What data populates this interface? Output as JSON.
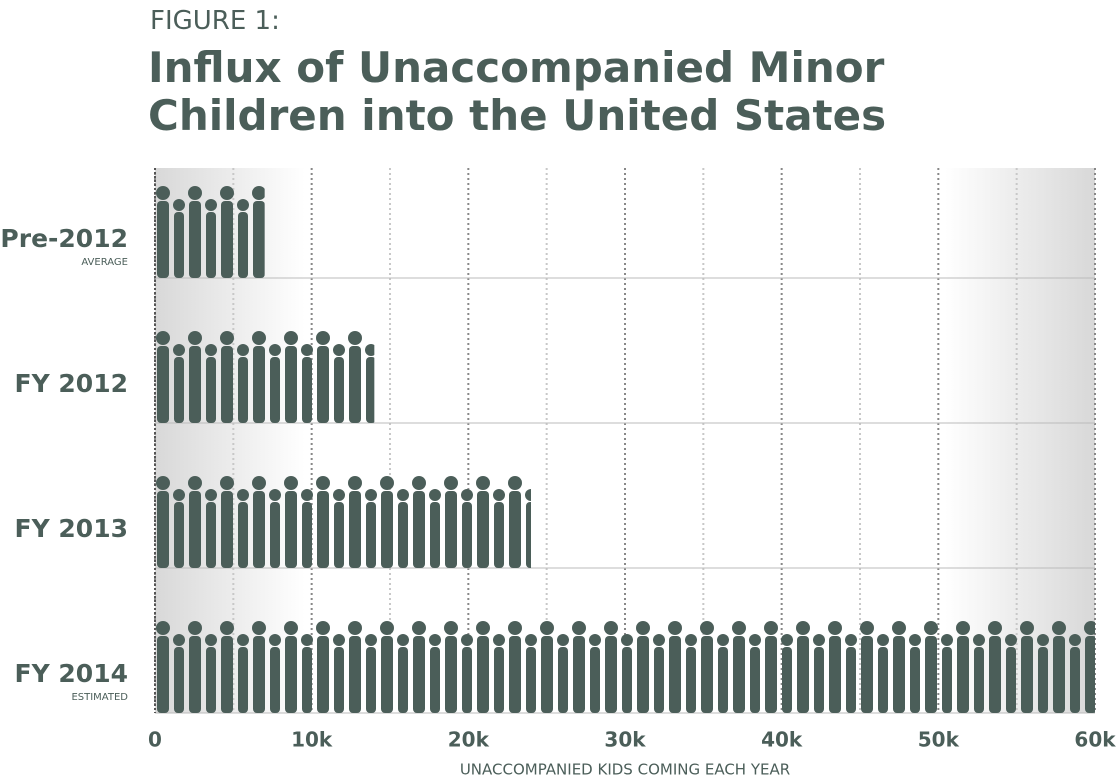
{
  "chart_data": {
    "type": "pictograph-bar",
    "label": "FIGURE 1:",
    "title": "Influx of Unaccompanied Minor Children into the United States",
    "categories": [
      "Pre-2012",
      "FY 2012",
      "FY 2013",
      "FY 2014"
    ],
    "sublabels": [
      "AVERAGE",
      null,
      null,
      "ESTIMATED"
    ],
    "values": [
      7000,
      14000,
      24000,
      60000
    ],
    "color": "#4b5e59",
    "xlim": [
      0,
      60000
    ],
    "xticks": [
      0,
      {
        "value": 10000,
        "label": "10k"
      },
      {
        "value": 20000,
        "label": "20k"
      },
      {
        "value": 30000,
        "label": "30k"
      },
      {
        "value": 40000,
        "label": "40k"
      },
      {
        "value": 50000,
        "label": "50k"
      },
      {
        "value": 60000,
        "label": "60k"
      }
    ],
    "minor_xticks": [
      5000,
      15000,
      25000,
      35000,
      45000,
      55000
    ],
    "xlabel": "UNACCOMPANIED KIDS COMING EACH YEAR",
    "grid": true
  }
}
